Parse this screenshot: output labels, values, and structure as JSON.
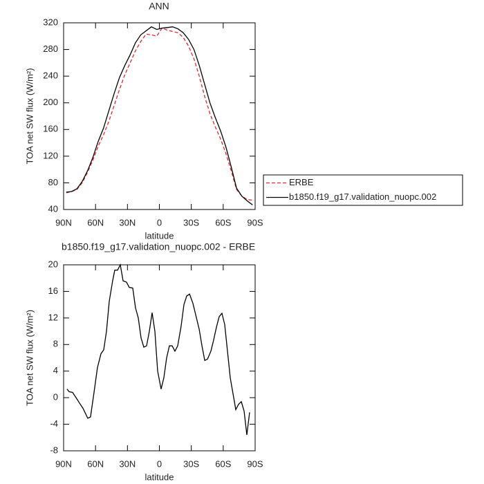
{
  "chart_data": [
    {
      "type": "line",
      "title": "ANN",
      "xlabel": "latitude",
      "ylabel": "TOA net SW flux (W/m²)",
      "x": [
        87.5,
        82.5,
        77.5,
        72.5,
        67.5,
        62.5,
        57.5,
        52.5,
        47.5,
        42.5,
        37.5,
        32.5,
        27.5,
        22.5,
        17.5,
        12.5,
        7.5,
        2.5,
        -2.5,
        -7.5,
        -12.5,
        -17.5,
        -22.5,
        -27.5,
        -32.5,
        -37.5,
        -42.5,
        -47.5,
        -52.5,
        -57.5,
        -62.5,
        -67.5,
        -72.5,
        -77.5,
        -82.5,
        -87.5
      ],
      "series": [
        {
          "name": "ERBE",
          "color": "#e8272a",
          "style": "dashed",
          "values": [
            65,
            67,
            70,
            80,
            96,
            114,
            135,
            152,
            172,
            196,
            220,
            242,
            260,
            278,
            292,
            303,
            302,
            300,
            312,
            309,
            307,
            305,
            298,
            285,
            266,
            240,
            210,
            184,
            164,
            146,
            124,
            98,
            70,
            60,
            55,
            54
          ]
        },
        {
          "name": "b1850.f19_g17.validation_nuopc.002",
          "color": "#000000",
          "style": "solid",
          "values": [
            66,
            67,
            71,
            82,
            98,
            118,
            142,
            162,
            188,
            214,
            238,
            256,
            272,
            290,
            302,
            308,
            314,
            310,
            312,
            313,
            314,
            311,
            305,
            295,
            280,
            256,
            228,
            200,
            178,
            158,
            134,
            104,
            72,
            60,
            53,
            47
          ]
        }
      ],
      "xlim": [
        90,
        -90
      ],
      "xticks": [
        {
          "value": 90,
          "label": "90N"
        },
        {
          "value": 60,
          "label": "60N"
        },
        {
          "value": 30,
          "label": "30N"
        },
        0,
        {
          "value": -30,
          "label": "30S"
        },
        {
          "value": -60,
          "label": "60S"
        },
        {
          "value": -90,
          "label": "90S"
        }
      ],
      "ylim": [
        40,
        320
      ],
      "yticks": [
        40,
        80,
        120,
        160,
        200,
        240,
        280,
        320
      ],
      "legend": "right"
    },
    {
      "type": "line",
      "title": "b1850.f19_g17.validation_nuopc.002 - ERBE",
      "xlabel": "latitude",
      "ylabel": "TOA net SW flux (W/m²)",
      "x": [
        86.8,
        84.8,
        81.6,
        78.3,
        75.1,
        71.8,
        67.3,
        64.7,
        61.4,
        58.2,
        54.9,
        52.3,
        49.7,
        47.1,
        43.9,
        41.9,
        39.3,
        36.7,
        34.1,
        30.9,
        28.3,
        25,
        22.4,
        19.8,
        17.2,
        14.6,
        12,
        9.4,
        6.8,
        4.2,
        1.6,
        -1.6,
        -4.2,
        -6.8,
        -9.4,
        -12,
        -14.6,
        -17.2,
        -20.5,
        -23.1,
        -25.7,
        -28.3,
        -31.5,
        -34.1,
        -37.4,
        -40,
        -42.6,
        -45.2,
        -48.4,
        -51,
        -53.6,
        -56.2,
        -58.8,
        -61.4,
        -64,
        -66.6,
        -69.2,
        -71.8,
        -74.4,
        -77,
        -79.6,
        -82.2,
        -84.8
      ],
      "values": [
        1.3,
        0.9,
        0.8,
        0,
        -0.8,
        -1.6,
        -3.1,
        -2.9,
        0.8,
        4.5,
        6.6,
        7.2,
        10,
        14.5,
        17.6,
        19.2,
        19.2,
        20,
        17.6,
        17.4,
        16.6,
        16.5,
        13.5,
        12,
        9,
        7.6,
        7.8,
        10,
        12.8,
        10,
        4,
        1.3,
        3,
        6,
        7.8,
        7.8,
        7,
        7.8,
        10.8,
        14,
        15.3,
        15.6,
        14.2,
        12.5,
        10.3,
        7.8,
        5.6,
        5.8,
        7,
        8.7,
        10.6,
        12.2,
        12.7,
        11,
        7,
        3,
        0.6,
        -1.8,
        -1,
        -0.6,
        -2,
        -5.6,
        -2.2
      ],
      "color": "#000000",
      "xlim": [
        90,
        -90
      ],
      "xticks": [
        {
          "value": 90,
          "label": "90N"
        },
        {
          "value": 60,
          "label": "60N"
        },
        {
          "value": 30,
          "label": "30N"
        },
        0,
        {
          "value": -30,
          "label": "30S"
        },
        {
          "value": -60,
          "label": "60S"
        },
        {
          "value": -90,
          "label": "90S"
        }
      ],
      "ylim": [
        -8,
        20
      ],
      "yticks": [
        -8,
        -4,
        0,
        4,
        8,
        12,
        16,
        20
      ]
    }
  ]
}
